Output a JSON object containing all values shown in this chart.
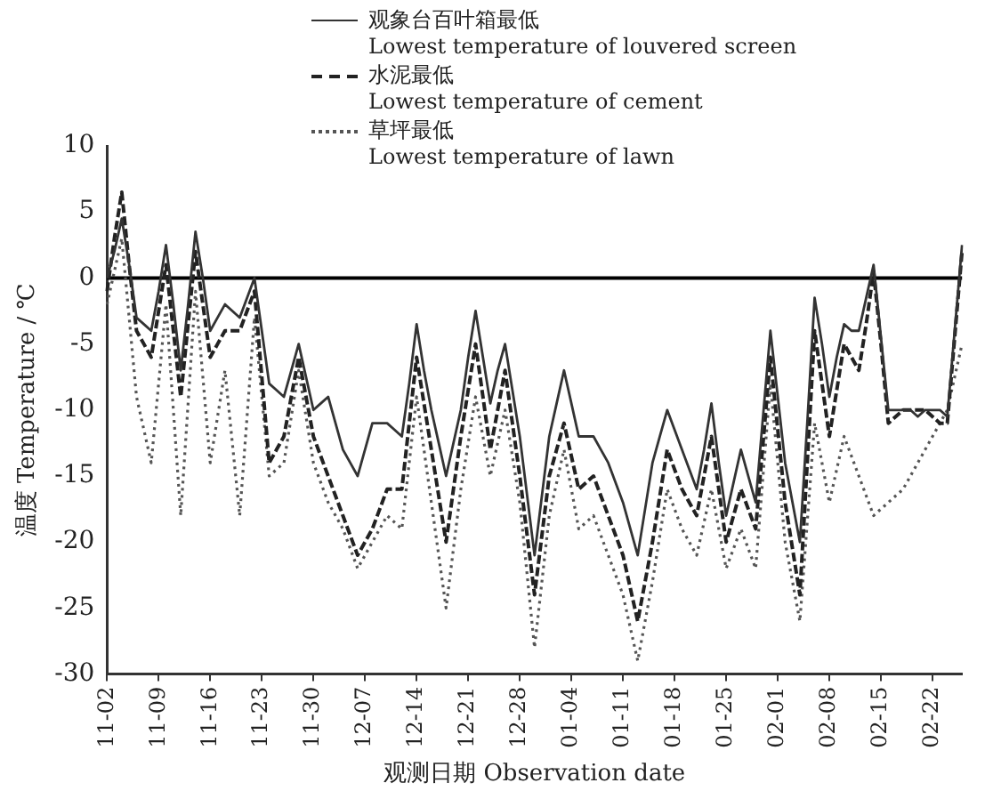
{
  "chart_data": {
    "type": "line",
    "xlabel": "观测日期 Observation date",
    "ylabel": "温度 Temperature / ℃",
    "categories": [
      "11-02",
      null,
      null,
      null,
      null,
      null,
      null,
      "11-09",
      null,
      null,
      null,
      null,
      null,
      null,
      "11-16",
      null,
      null,
      null,
      null,
      null,
      null,
      "11-23",
      null,
      null,
      null,
      null,
      null,
      null,
      "11-30",
      null,
      null,
      null,
      null,
      null,
      null,
      "12-07",
      null,
      null,
      null,
      null,
      null,
      null,
      "12-14",
      null,
      null,
      null,
      null,
      null,
      null,
      "12-21",
      null,
      null,
      null,
      null,
      null,
      null,
      "12-28",
      null,
      null,
      null,
      null,
      null,
      null,
      "01-04",
      null,
      null,
      null,
      null,
      null,
      null,
      "01-11",
      null,
      null,
      null,
      null,
      null,
      null,
      "01-18",
      null,
      null,
      null,
      null,
      null,
      null,
      "01-25",
      null,
      null,
      null,
      null,
      null,
      null,
      "02-01",
      null,
      null,
      null,
      null,
      null,
      null,
      "02-08",
      null,
      null,
      null,
      null,
      null,
      null,
      "02-15",
      null,
      null,
      null,
      null,
      null,
      null,
      "02-22",
      null,
      null,
      null,
      null
    ],
    "series": [
      {
        "name": "观象台百叶箱最低\nLowest temperature of louvered screen",
        "color": "#333333",
        "line_style": "solid",
        "values": [
          0,
          2,
          4.5,
          1,
          -3,
          -3.5,
          -4,
          -1,
          2.5,
          -2,
          -7,
          -2,
          3.5,
          0,
          -4,
          -3,
          -2,
          -2.5,
          -3,
          -1.5,
          0,
          -4,
          -8,
          -8.5,
          -9,
          -7,
          -5,
          -7.5,
          -10,
          -9.5,
          -9,
          -11,
          -13,
          -14,
          -15,
          -13,
          -11,
          -11,
          -11,
          -11.5,
          -12,
          -8,
          -3.5,
          -7,
          -10,
          -12.5,
          -15,
          -12.5,
          -10,
          -6,
          -2.5,
          -6,
          -9.5,
          -7,
          -5,
          -8.5,
          -12,
          -16.5,
          -21,
          -16.5,
          -12,
          -9.5,
          -7,
          -9.5,
          -12,
          -12,
          -12,
          -13,
          -14,
          -15.5,
          -17,
          -19,
          -21,
          -17.5,
          -14,
          -12,
          -10,
          -11.5,
          -13,
          -14.5,
          -16,
          -13,
          -9.5,
          -14,
          -18,
          -15.5,
          -13,
          -15,
          -17,
          -10.5,
          -4,
          -9,
          -14,
          -17,
          -20,
          -11,
          -1.5,
          -5,
          -9,
          -6,
          -3.5,
          -4,
          -4,
          -1.5,
          1,
          -4.5,
          -10,
          -10,
          -10,
          -10,
          -10.5,
          -10,
          -10,
          -10,
          -10.5,
          -4,
          2.5
        ]
      },
      {
        "name": "水泥最低\nLowest temperature of cement",
        "color": "#222222",
        "line_style": "dashed",
        "values": [
          -1,
          3,
          6.5,
          1,
          -4,
          -5,
          -6,
          -2.5,
          1,
          -4,
          -9,
          -3.5,
          2,
          -2,
          -6,
          -5,
          -4,
          -4,
          -4,
          -2.5,
          -1,
          -7.5,
          -14,
          -13,
          -12,
          -9,
          -6,
          -9,
          -12,
          -13.5,
          -15,
          -16.5,
          -18,
          -19.5,
          -21,
          -20,
          -19,
          -17.5,
          -16,
          -16,
          -16,
          -11,
          -6,
          -9.5,
          -13,
          -16.5,
          -20,
          -16,
          -12,
          -8.5,
          -5,
          -9,
          -13,
          -10,
          -7,
          -11,
          -15,
          -19.5,
          -24,
          -19.5,
          -15,
          -13,
          -11,
          -13.5,
          -16,
          -15.5,
          -15,
          -16.5,
          -18,
          -19.5,
          -21,
          -23.5,
          -26,
          -23,
          -20,
          -16.5,
          -13,
          -14.5,
          -16,
          -17,
          -18,
          -15,
          -12,
          -16,
          -20,
          -18,
          -16,
          -17.5,
          -19,
          -12.5,
          -6,
          -11.5,
          -17,
          -20.5,
          -24,
          -14,
          -4,
          -8,
          -12,
          -8.5,
          -5,
          -6,
          -7,
          -3.5,
          0.5,
          -5,
          -11,
          -10.5,
          -10,
          -10,
          -10,
          -10,
          -10.5,
          -11,
          -11,
          -4.5,
          2
        ]
      },
      {
        "name": "草坪最低\nLowest temperature of lawn",
        "color": "#555555",
        "line_style": "dotted",
        "values": [
          -2,
          0.5,
          3,
          -3,
          -9,
          -11.5,
          -14,
          -8,
          -2,
          -10,
          -18,
          -9.5,
          -1,
          -7.5,
          -14,
          -10.5,
          -7,
          -12.5,
          -18,
          -10.5,
          -3,
          -9,
          -15,
          -14.5,
          -14,
          -10.5,
          -7,
          -10.5,
          -14,
          -15.5,
          -17,
          -18,
          -19,
          -20.5,
          -22,
          -21,
          -20,
          -19,
          -18,
          -18.5,
          -19,
          -14,
          -9,
          -13,
          -17,
          -21,
          -25,
          -20.5,
          -16,
          -12.5,
          -9,
          -12,
          -15,
          -12.5,
          -10,
          -13.5,
          -17,
          -22.5,
          -28,
          -23,
          -18,
          -15.5,
          -13,
          -16,
          -19,
          -18.5,
          -18,
          -19.5,
          -21,
          -22.5,
          -24,
          -26.5,
          -29,
          -26,
          -23,
          -19.5,
          -16,
          -17.5,
          -19,
          -20,
          -21,
          -18.5,
          -16,
          -19,
          -22,
          -20.5,
          -19,
          -20.5,
          -22,
          -15,
          -8,
          -14,
          -20,
          -23,
          -26,
          -18.5,
          -11,
          -14,
          -17,
          -14.5,
          -12,
          -13.5,
          -15,
          -16.5,
          -18,
          -17.5,
          -17,
          -16.5,
          -16,
          -15,
          -14,
          -13,
          -12,
          -11,
          -10,
          -7.5,
          -5
        ]
      }
    ],
    "ylim": [
      -30,
      10
    ],
    "yticks": [
      -30,
      -25,
      -20,
      -15,
      -10,
      -5,
      0,
      5,
      10
    ],
    "ref_lines": [
      {
        "axis": "y",
        "value": 0,
        "color": "#000000"
      }
    ],
    "grid": false,
    "legend": "top",
    "marker": "none"
  }
}
